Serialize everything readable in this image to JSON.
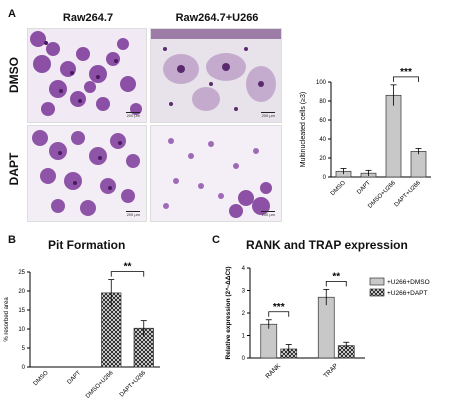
{
  "figure": {
    "panel_letters": [
      "A",
      "B",
      "C"
    ],
    "column_headers": [
      "Raw264.7",
      "Raw264.7+U266"
    ],
    "row_headers": [
      "DMSO",
      "DAPT"
    ],
    "scale_bar_label": "200 μm",
    "colors": {
      "stain": "#8a3fa0",
      "stain_dark": "#4d1f63",
      "bar_fill": "#c8c8c8",
      "hatch": "#222222"
    }
  },
  "chart_data": [
    {
      "type": "bar",
      "title": "",
      "ylabel": "Multinucleated cells (≥3)",
      "xlabel": "",
      "categories": [
        "DMSO",
        "DAPT",
        "DMSO+U266",
        "DAPT+U266"
      ],
      "values": [
        6,
        4,
        86,
        27
      ],
      "errors": [
        3,
        3,
        11,
        3
      ],
      "ylim": [
        0,
        100
      ],
      "yticks": [
        0,
        20,
        40,
        60,
        80,
        100
      ],
      "significance": "***"
    },
    {
      "type": "bar",
      "title": "Pit Formation",
      "ylabel": "% resorbed area",
      "xlabel": "",
      "categories": [
        "DMSO",
        "DAPT",
        "DMSO+U266",
        "DAPT+U266"
      ],
      "values": [
        0,
        0,
        19.5,
        10.2
      ],
      "errors": [
        0,
        0,
        3.5,
        2
      ],
      "ylim": [
        0,
        25
      ],
      "yticks": [
        0,
        5,
        10,
        15,
        20,
        25
      ],
      "significance": "**"
    },
    {
      "type": "bar",
      "title": "RANK  and TRAP expression",
      "ylabel": "Relative expression (2^-ΔΔCt)",
      "xlabel": "",
      "categories": [
        "RANK",
        "TRAP"
      ],
      "series": [
        {
          "name": "+U266+DMSO",
          "values": [
            1.5,
            2.7
          ],
          "errors": [
            0.2,
            0.35
          ]
        },
        {
          "name": "+U266+DAPT",
          "values": [
            0.4,
            0.55
          ],
          "errors": [
            0.2,
            0.15
          ]
        }
      ],
      "ylim": [
        0,
        4
      ],
      "yticks": [
        0,
        1,
        2,
        3,
        4
      ],
      "significance": [
        "***",
        "**"
      ],
      "legend": "top-right"
    }
  ]
}
